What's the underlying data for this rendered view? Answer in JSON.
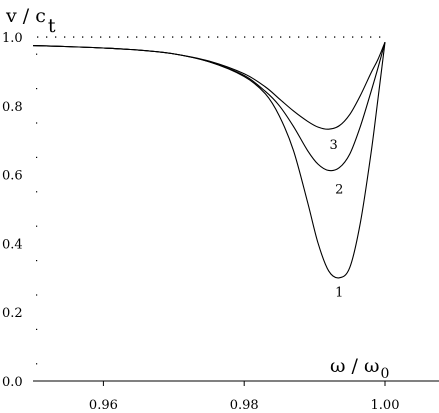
{
  "chart_data": {
    "type": "line",
    "ylabel": {
      "main": "v / c",
      "sub": "t"
    },
    "xlabel": {
      "main": "ω / ω",
      "sub": "0"
    },
    "xlim": [
      0.95,
      1.0
    ],
    "ylim": [
      0.0,
      1.0
    ],
    "x_ticks": [
      {
        "value": 0.96,
        "label": "0.96"
      },
      {
        "value": 0.98,
        "label": "0.98"
      },
      {
        "value": 1.0,
        "label": "1.00"
      }
    ],
    "y_ticks": [
      {
        "value": 0.0,
        "label": "0.0"
      },
      {
        "value": 0.2,
        "label": "0.2"
      },
      {
        "value": 0.4,
        "label": "0.4"
      },
      {
        "value": 0.6,
        "label": "0.6"
      },
      {
        "value": 0.8,
        "label": "0.8"
      },
      {
        "value": 1.0,
        "label": "1.0"
      }
    ],
    "reference_line": {
      "y": 1.0,
      "style": "dotted"
    },
    "series": [
      {
        "name": "1",
        "points": [
          [
            0.95,
            0.975
          ],
          [
            0.955,
            0.972
          ],
          [
            0.96,
            0.968
          ],
          [
            0.965,
            0.962
          ],
          [
            0.97,
            0.951
          ],
          [
            0.975,
            0.928
          ],
          [
            0.98,
            0.885
          ],
          [
            0.983,
            0.835
          ],
          [
            0.985,
            0.77
          ],
          [
            0.987,
            0.67
          ],
          [
            0.989,
            0.52
          ],
          [
            0.9905,
            0.4
          ],
          [
            0.992,
            0.32
          ],
          [
            0.9935,
            0.3
          ],
          [
            0.995,
            0.33
          ],
          [
            0.9965,
            0.46
          ],
          [
            0.998,
            0.66
          ],
          [
            0.999,
            0.82
          ],
          [
            1.0,
            0.985
          ]
        ]
      },
      {
        "name": "2",
        "points": [
          [
            0.95,
            0.975
          ],
          [
            0.955,
            0.972
          ],
          [
            0.96,
            0.968
          ],
          [
            0.965,
            0.962
          ],
          [
            0.97,
            0.951
          ],
          [
            0.975,
            0.928
          ],
          [
            0.98,
            0.888
          ],
          [
            0.983,
            0.842
          ],
          [
            0.985,
            0.8
          ],
          [
            0.987,
            0.74
          ],
          [
            0.989,
            0.67
          ],
          [
            0.9905,
            0.63
          ],
          [
            0.992,
            0.612
          ],
          [
            0.9935,
            0.62
          ],
          [
            0.995,
            0.66
          ],
          [
            0.9965,
            0.74
          ],
          [
            0.998,
            0.84
          ],
          [
            0.999,
            0.91
          ],
          [
            1.0,
            0.985
          ]
        ]
      },
      {
        "name": "3",
        "points": [
          [
            0.95,
            0.975
          ],
          [
            0.955,
            0.972
          ],
          [
            0.96,
            0.968
          ],
          [
            0.965,
            0.962
          ],
          [
            0.97,
            0.951
          ],
          [
            0.975,
            0.93
          ],
          [
            0.98,
            0.893
          ],
          [
            0.983,
            0.855
          ],
          [
            0.985,
            0.82
          ],
          [
            0.987,
            0.785
          ],
          [
            0.989,
            0.755
          ],
          [
            0.9905,
            0.738
          ],
          [
            0.992,
            0.732
          ],
          [
            0.9935,
            0.742
          ],
          [
            0.995,
            0.775
          ],
          [
            0.9965,
            0.83
          ],
          [
            0.998,
            0.895
          ],
          [
            0.999,
            0.935
          ],
          [
            1.0,
            0.985
          ]
        ]
      }
    ],
    "curve_labels": [
      {
        "text": "1",
        "x": 0.9935,
        "y": 0.245
      },
      {
        "text": "2",
        "x": 0.9935,
        "y": 0.545
      },
      {
        "text": "3",
        "x": 0.9927,
        "y": 0.675
      }
    ],
    "grid": false,
    "legend": "none"
  }
}
